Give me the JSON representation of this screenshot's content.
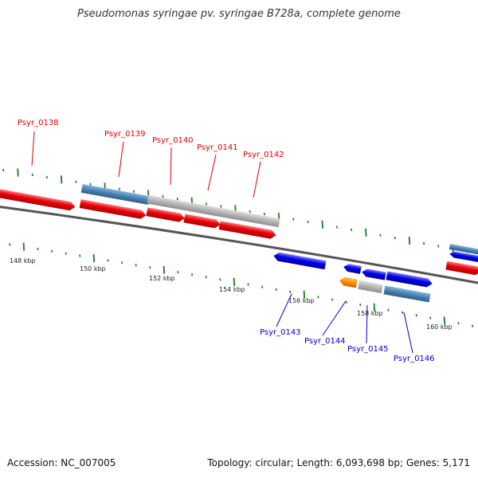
{
  "title": "Pseudomonas syringae pv. syringae B728a, complete genome",
  "footer": {
    "accession": "Accession: NC_007005",
    "topology": "Topology: circular; Length: 6,093,698 bp; Genes: 5,171"
  },
  "colors": {
    "red": "#e8000a",
    "blue": "#0000e6",
    "steel": "#4682b4",
    "gray": "#b3b3b3",
    "orange": "#ff8c00",
    "tick_green": "#1b7a1b",
    "backbone": "#555555",
    "label_red": "#e00000",
    "label_blue": "#0000cc"
  },
  "scale_labels": [
    "148 kbp",
    "150 kbp",
    "152 kbp",
    "154 kbp",
    "156 kbp",
    "158 kbp",
    "160 kbp"
  ],
  "gene_labels": [
    {
      "text": "Psyr_0138",
      "color": "red"
    },
    {
      "text": "Psyr_0139",
      "color": "red"
    },
    {
      "text": "Psyr_0140",
      "color": "red"
    },
    {
      "text": "Psyr_0141",
      "color": "red"
    },
    {
      "text": "Psyr_0142",
      "color": "red"
    },
    {
      "text": "Psyr_0143",
      "color": "blue"
    },
    {
      "text": "Psyr_0144",
      "color": "blue"
    },
    {
      "text": "Psyr_0145",
      "color": "blue"
    },
    {
      "text": "Psyr_0146",
      "color": "blue"
    }
  ],
  "features": [
    {
      "kind": "gene",
      "strand": "+",
      "color": "red"
    },
    {
      "kind": "gene",
      "strand": "+",
      "color": "red"
    },
    {
      "kind": "gene",
      "strand": "+",
      "color": "red"
    },
    {
      "kind": "gene",
      "strand": "+",
      "color": "red"
    },
    {
      "kind": "gene",
      "strand": "+",
      "color": "red"
    },
    {
      "kind": "cds",
      "strand": "+",
      "color": "steel"
    },
    {
      "kind": "cds",
      "strand": "+",
      "color": "gray"
    },
    {
      "kind": "gene",
      "strand": "-",
      "color": "blue"
    },
    {
      "kind": "gene",
      "strand": "-",
      "color": "blue"
    },
    {
      "kind": "gene",
      "strand": "-",
      "color": "blue"
    },
    {
      "kind": "gene",
      "strand": "+",
      "color": "blue"
    },
    {
      "kind": "gene",
      "strand": "-",
      "color": "orange"
    },
    {
      "kind": "cds",
      "strand": "-",
      "color": "gray"
    },
    {
      "kind": "cds",
      "strand": "-",
      "color": "steel"
    },
    {
      "kind": "gene",
      "strand": "+",
      "color": "red"
    },
    {
      "kind": "gene",
      "strand": "-",
      "color": "blue"
    },
    {
      "kind": "cds",
      "strand": "+",
      "color": "steel"
    }
  ]
}
